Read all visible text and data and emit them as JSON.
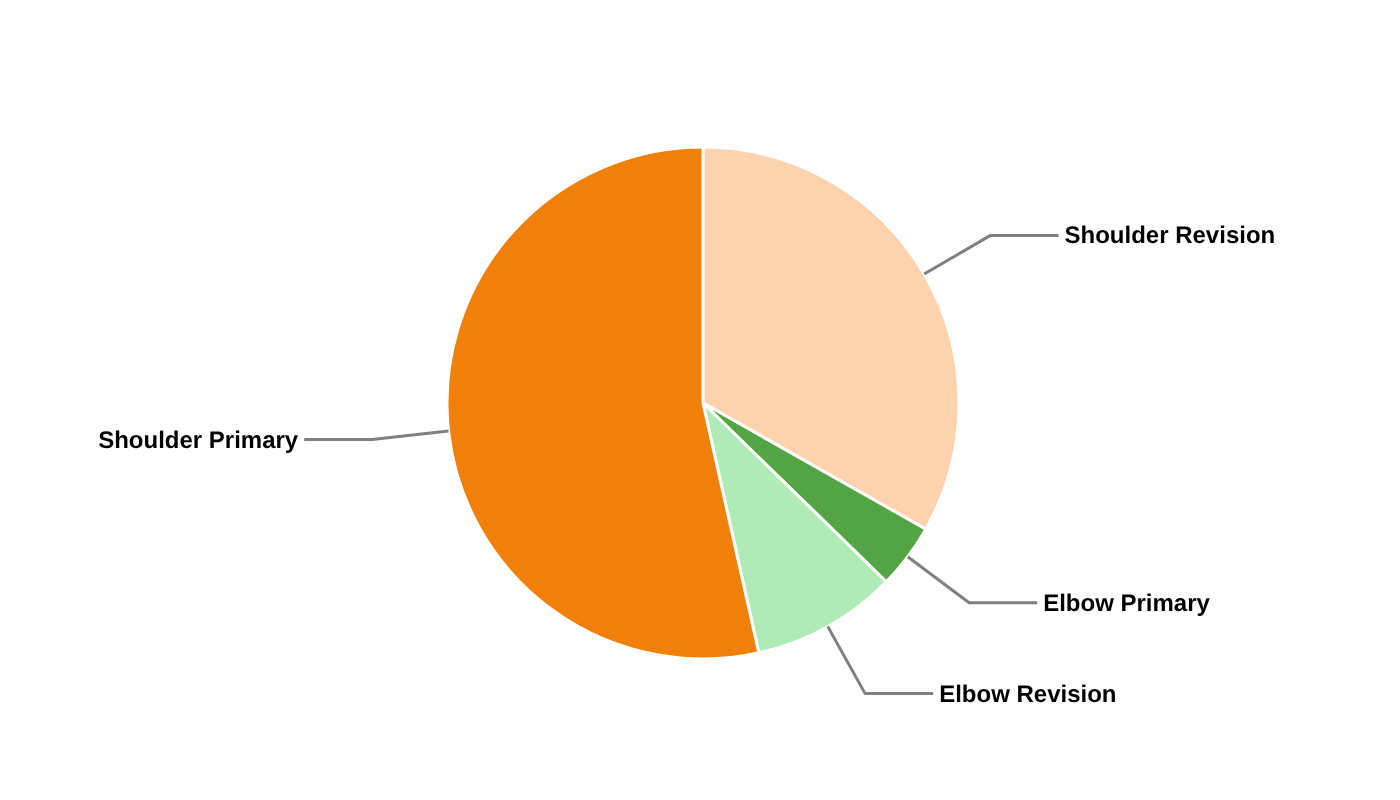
{
  "chart_data": {
    "type": "pie",
    "categories": [
      "Shoulder Revision",
      "Elbow Primary",
      "Elbow Revision",
      "Shoulder Primary"
    ],
    "values": [
      33.2,
      4.1,
      9.2,
      53.5
    ],
    "colors": [
      "#fdd2ae",
      "#52a444",
      "#b0ebb7",
      "#f0800a"
    ]
  }
}
